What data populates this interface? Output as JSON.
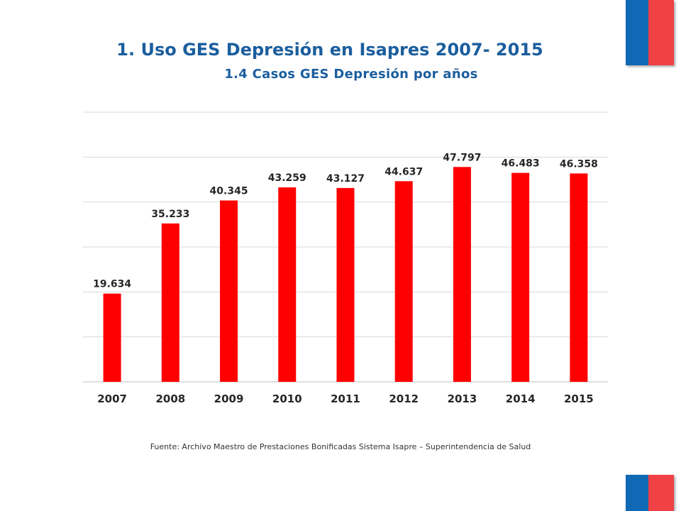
{
  "header": {
    "title": "1. Uso GES Depresión en Isapres 2007- 2015",
    "subtitle": "1.4 Casos GES Depresión por años"
  },
  "colors": {
    "title": "#1B5E9E",
    "bar": "#FF0000",
    "grid": "#D9D9D9",
    "flag_blue": "#0F69B4",
    "flag_red": "#EF4146"
  },
  "chart_data": {
    "type": "bar",
    "categories": [
      "2007",
      "2008",
      "2009",
      "2010",
      "2011",
      "2012",
      "2013",
      "2014",
      "2015"
    ],
    "values": [
      19634,
      35233,
      40345,
      43259,
      43127,
      44637,
      47797,
      46483,
      46358
    ],
    "data_labels": [
      "19.634",
      "35.233",
      "40.345",
      "43.259",
      "43.127",
      "44.637",
      "47.797",
      "46.483",
      "46.358"
    ],
    "ylim": [
      0,
      60000
    ],
    "grid": true,
    "title": "",
    "xlabel": "",
    "ylabel": ""
  },
  "footer": {
    "source": "Fuente: Archivo Maestro de Prestaciones Bonificadas Sistema Isapre – Superintendencia de Salud"
  }
}
